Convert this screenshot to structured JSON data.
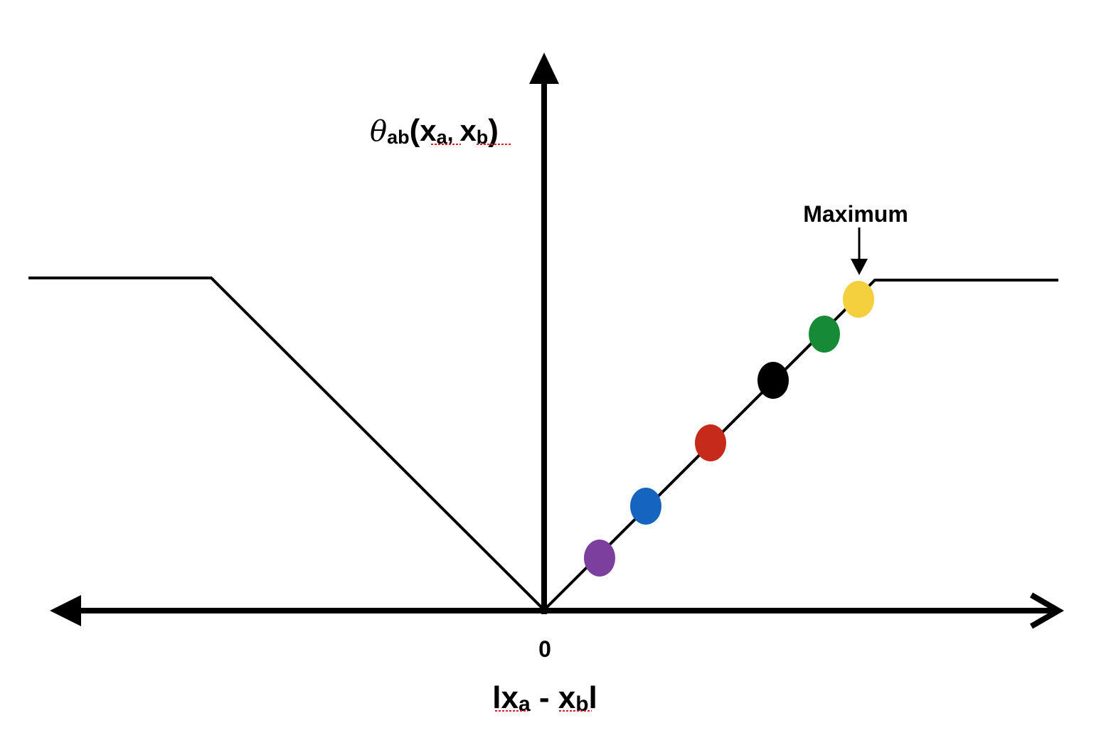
{
  "y_axis_label": {
    "symbol": "θ",
    "subscript": "ab",
    "open": "(",
    "var1": "x",
    "var1_sub": "a",
    "sep": ", ",
    "var2": "x",
    "var2_sub": "b",
    "close": ")"
  },
  "x_axis_label": {
    "left_bar": "l",
    "var1": "x",
    "var1_sub": "a",
    "minus": " - ",
    "var2": "x",
    "var2_sub": "b",
    "right_bar": "l"
  },
  "origin_label": "0",
  "maximum_label": "Maximum",
  "points": [
    {
      "color": "purple",
      "hex": "#7b3f9e"
    },
    {
      "color": "blue",
      "hex": "#1565c0"
    },
    {
      "color": "red",
      "hex": "#c62a1a"
    },
    {
      "color": "black",
      "hex": "#000000"
    },
    {
      "color": "green",
      "hex": "#168a35"
    },
    {
      "color": "yellow",
      "hex": "#f4d03f"
    }
  ]
}
